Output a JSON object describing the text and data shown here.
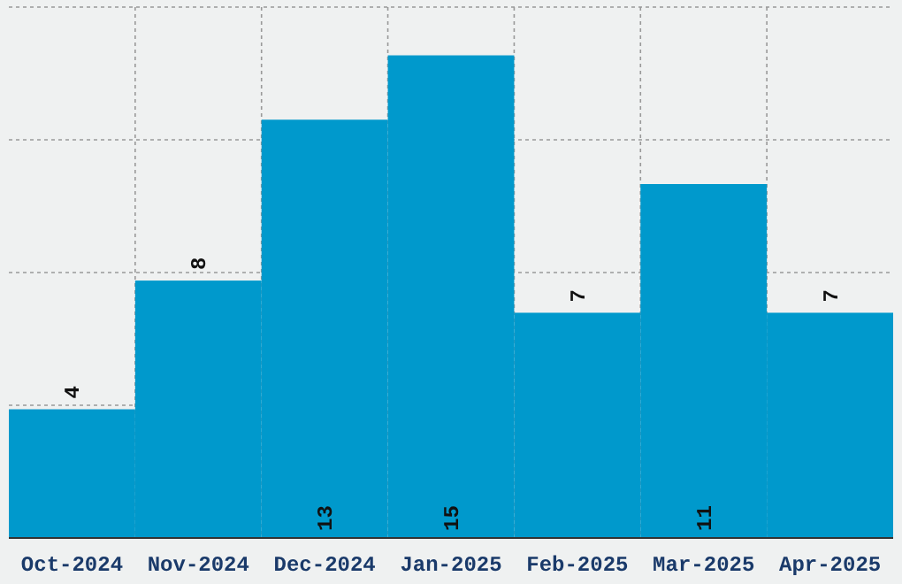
{
  "chart_data": {
    "type": "bar",
    "categories": [
      "Oct-2024",
      "Nov-2024",
      "Dec-2024",
      "Jan-2025",
      "Feb-2025",
      "Mar-2025",
      "Apr-2025"
    ],
    "values": [
      4,
      8,
      13,
      15,
      7,
      11,
      7
    ],
    "color": "#0099cc",
    "ylim": [
      0,
      16.5
    ],
    "yticks": [
      {
        "value": 4.125,
        "label": null
      },
      {
        "value": 8.25,
        "label": null
      },
      {
        "value": 12.375,
        "label": null
      },
      {
        "value": 16.5,
        "label": null
      }
    ],
    "grid": true,
    "tick_labels": "x",
    "data_labels": true
  }
}
